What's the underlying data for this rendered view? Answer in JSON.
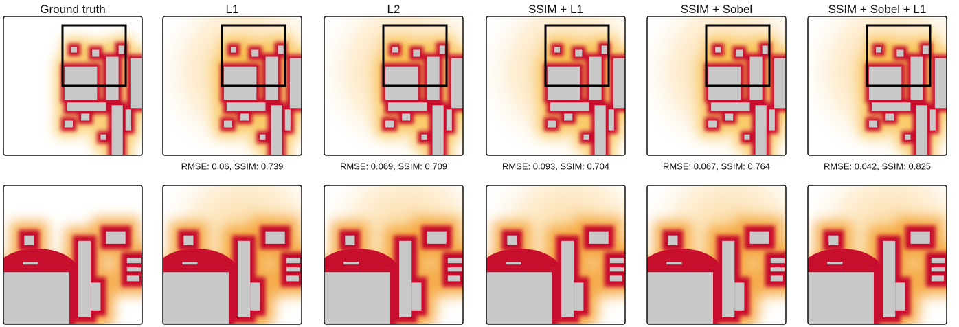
{
  "panels": [
    {
      "title": "Ground truth"
    },
    {
      "title": "L1",
      "caption": "RMSE: 0.06, SSIM: 0.739"
    },
    {
      "title": "L2",
      "caption": "RMSE: 0.069, SSIM: 0.709"
    },
    {
      "title": "SSIM + L1",
      "caption": "RMSE: 0.093, SSIM: 0.704"
    },
    {
      "title": "SSIM + Sobel",
      "caption": "RMSE: 0.067, SSIM: 0.764"
    },
    {
      "title": "SSIM + Sobel + L1",
      "caption": "RMSE: 0.042, SSIM: 0.825"
    }
  ]
}
